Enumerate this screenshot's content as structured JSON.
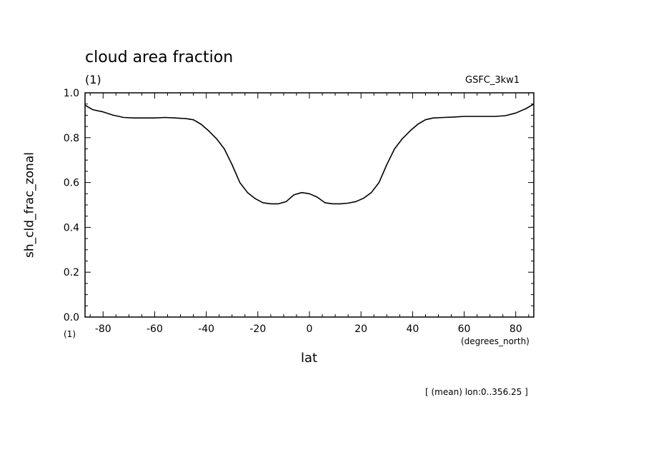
{
  "chart_data": {
    "type": "line",
    "title": "cloud area fraction",
    "units_label": "(1)",
    "model_label": "GSFC_3kw1",
    "xlabel": "lat",
    "x_units": "(degrees_north)",
    "ylabel": "sh_cld_frac_zonal",
    "y_units_bottom": "(1)",
    "footnote": "[ (mean) lon:0..356.25 ]",
    "xlim": [
      -87,
      87
    ],
    "ylim": [
      0,
      1
    ],
    "x_ticks": [
      -80,
      -60,
      -40,
      -20,
      0,
      20,
      40,
      60,
      80
    ],
    "x_tick_labels": [
      "-80",
      "-60",
      "-40",
      "-20",
      "0",
      "20",
      "40",
      "60",
      "80"
    ],
    "y_ticks": [
      0,
      0.2,
      0.4,
      0.6,
      0.8,
      1.0
    ],
    "y_tick_labels": [
      "0.0",
      "0.2",
      "0.4",
      "0.6",
      "0.8",
      "1.0"
    ],
    "grid": false,
    "series": [
      {
        "x": [
          -87,
          -84,
          -80,
          -76,
          -72,
          -68,
          -64,
          -60,
          -56,
          -52,
          -48,
          -45,
          -42,
          -39,
          -36,
          -33,
          -30,
          -27,
          -24,
          -21,
          -18,
          -15,
          -12,
          -9,
          -6,
          -3,
          0,
          3,
          6,
          9,
          12,
          15,
          18,
          21,
          24,
          27,
          30,
          33,
          36,
          39,
          42,
          45,
          48,
          52,
          56,
          60,
          64,
          68,
          72,
          76,
          80,
          84,
          87
        ],
        "y": [
          0.945,
          0.925,
          0.915,
          0.9,
          0.89,
          0.888,
          0.888,
          0.888,
          0.89,
          0.888,
          0.885,
          0.88,
          0.86,
          0.83,
          0.795,
          0.75,
          0.68,
          0.6,
          0.555,
          0.528,
          0.51,
          0.505,
          0.505,
          0.515,
          0.545,
          0.555,
          0.55,
          0.535,
          0.51,
          0.505,
          0.505,
          0.508,
          0.515,
          0.53,
          0.555,
          0.6,
          0.68,
          0.75,
          0.795,
          0.83,
          0.86,
          0.88,
          0.888,
          0.89,
          0.892,
          0.895,
          0.895,
          0.895,
          0.895,
          0.898,
          0.91,
          0.93,
          0.95
        ]
      }
    ]
  }
}
